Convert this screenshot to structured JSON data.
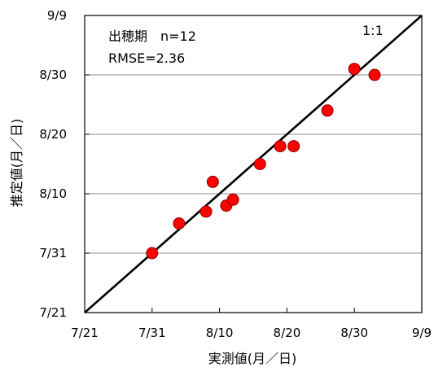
{
  "chart_data": {
    "type": "scatter",
    "title": "",
    "xlabel": "実測値(月／日)",
    "ylabel": "推定値(月／日)",
    "x_ticks": [
      "7/21",
      "7/31",
      "8/10",
      "8/20",
      "8/30",
      "9/9"
    ],
    "y_ticks": [
      "7/21",
      "7/31",
      "8/10",
      "8/20",
      "8/30",
      "9/9"
    ],
    "axis_unit": "day of year",
    "xlim": [
      202,
      252
    ],
    "ylim": [
      202,
      252
    ],
    "grid": "horizontal",
    "reference_line": {
      "label": "1:1",
      "from": [
        202,
        202
      ],
      "to": [
        252,
        252
      ]
    },
    "annotations": {
      "line1": "出穂期　n=12",
      "line2": "RMSE=2.36"
    },
    "marker_color": "#ff0000",
    "series": [
      {
        "points": [
          {
            "x": 212,
            "y": 212
          },
          {
            "x": 216,
            "y": 217
          },
          {
            "x": 220,
            "y": 219
          },
          {
            "x": 221,
            "y": 224
          },
          {
            "x": 223,
            "y": 220
          },
          {
            "x": 224,
            "y": 221
          },
          {
            "x": 228,
            "y": 227
          },
          {
            "x": 231,
            "y": 230
          },
          {
            "x": 233,
            "y": 230
          },
          {
            "x": 238,
            "y": 236
          },
          {
            "x": 242,
            "y": 243
          },
          {
            "x": 245,
            "y": 242
          }
        ]
      }
    ]
  }
}
